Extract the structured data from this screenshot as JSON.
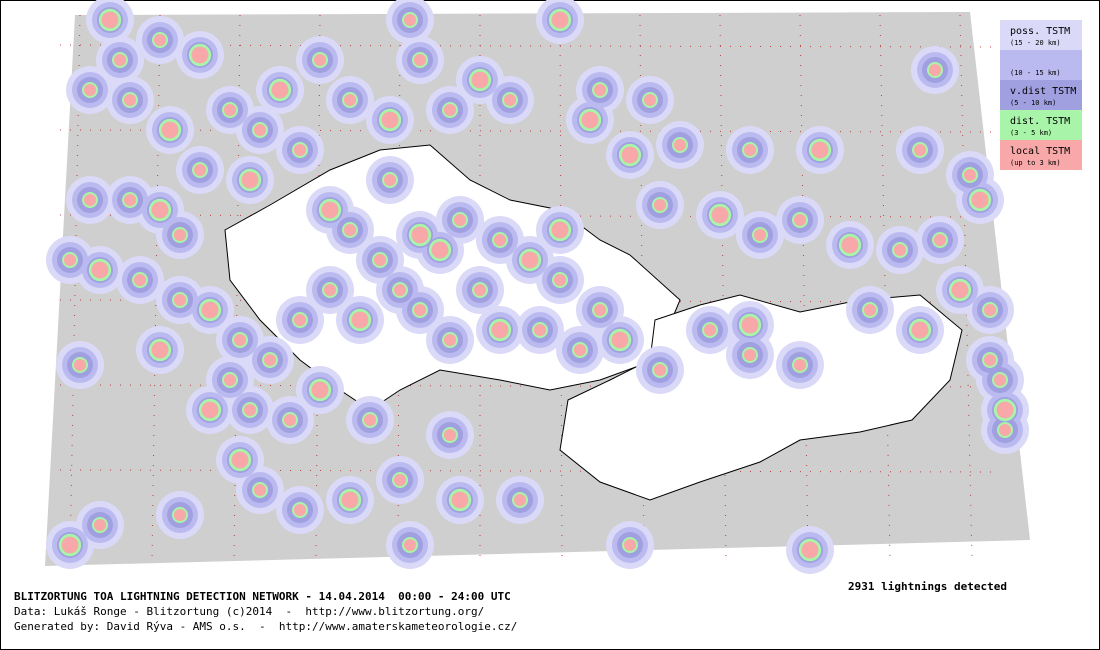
{
  "legend": [
    {
      "label": "poss. TSTM",
      "range": "(15 - 20 km)",
      "color": "#dadaf8"
    },
    {
      "range": "(10 - 15 km)",
      "color": "#babaf0"
    },
    {
      "label": "v.dist TSTM",
      "range": "(5 - 10 km)",
      "color": "#a0a0e0"
    },
    {
      "label": "dist. TSTM",
      "range": "(3 - 5 km)",
      "color": "#a8f4a8"
    },
    {
      "label": "local TSTM",
      "range": "(up to 3 km)",
      "color": "#f8a8a8"
    }
  ],
  "count": "2931 lightnings detected",
  "footer": {
    "title": "BLITZORTUNG TOA LIGHTNING DETECTION NETWORK - 14.04.2014  00:00 - 24:00 UTC",
    "data_credit": "Data: Lukáš Ronge - Blitzortung (c)2014  -  http://www.blitzortung.org/",
    "generated": "Generated by: David Rýva - AMS o.s.  -  http://www.amaterskameteorologie.cz/"
  }
}
